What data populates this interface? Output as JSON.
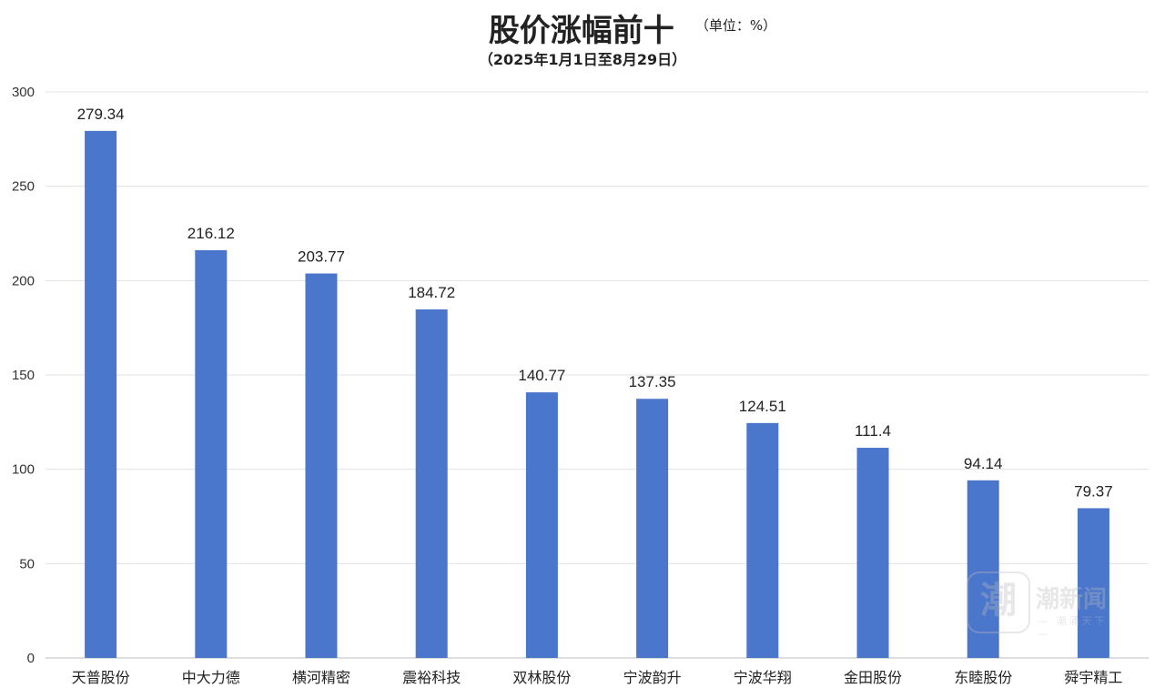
{
  "header": {
    "title": "股价涨幅前十",
    "unit": "（单位：%）",
    "subtitle": "（2025年1月1日至8月29日）"
  },
  "watermark": {
    "badge": "潮",
    "name": "潮新闻",
    "slogan": "— 潮涌天下 —"
  },
  "chart_data": {
    "type": "bar",
    "title": "股价涨幅前十",
    "subtitle": "（2025年1月1日至8月29日）",
    "unit": "（单位：%）",
    "categories": [
      "天普股份",
      "中大力德",
      "横河精密",
      "震裕科技",
      "双林股份",
      "宁波韵升",
      "宁波华翔",
      "金田股份",
      "东睦股份",
      "舜宇精工"
    ],
    "values": [
      279.34,
      216.12,
      203.77,
      184.72,
      140.77,
      137.35,
      124.51,
      111.4,
      94.14,
      79.37
    ],
    "value_labels": [
      "279.34",
      "216.12",
      "203.77",
      "184.72",
      "140.77",
      "137.35",
      "124.51",
      "111.4",
      "94.14",
      "79.37"
    ],
    "ylim": [
      0,
      300
    ],
    "yticks": [
      0,
      50,
      100,
      150,
      200,
      250,
      300
    ],
    "grid": true,
    "legend": "none",
    "bar_color": "#4a76cc"
  }
}
